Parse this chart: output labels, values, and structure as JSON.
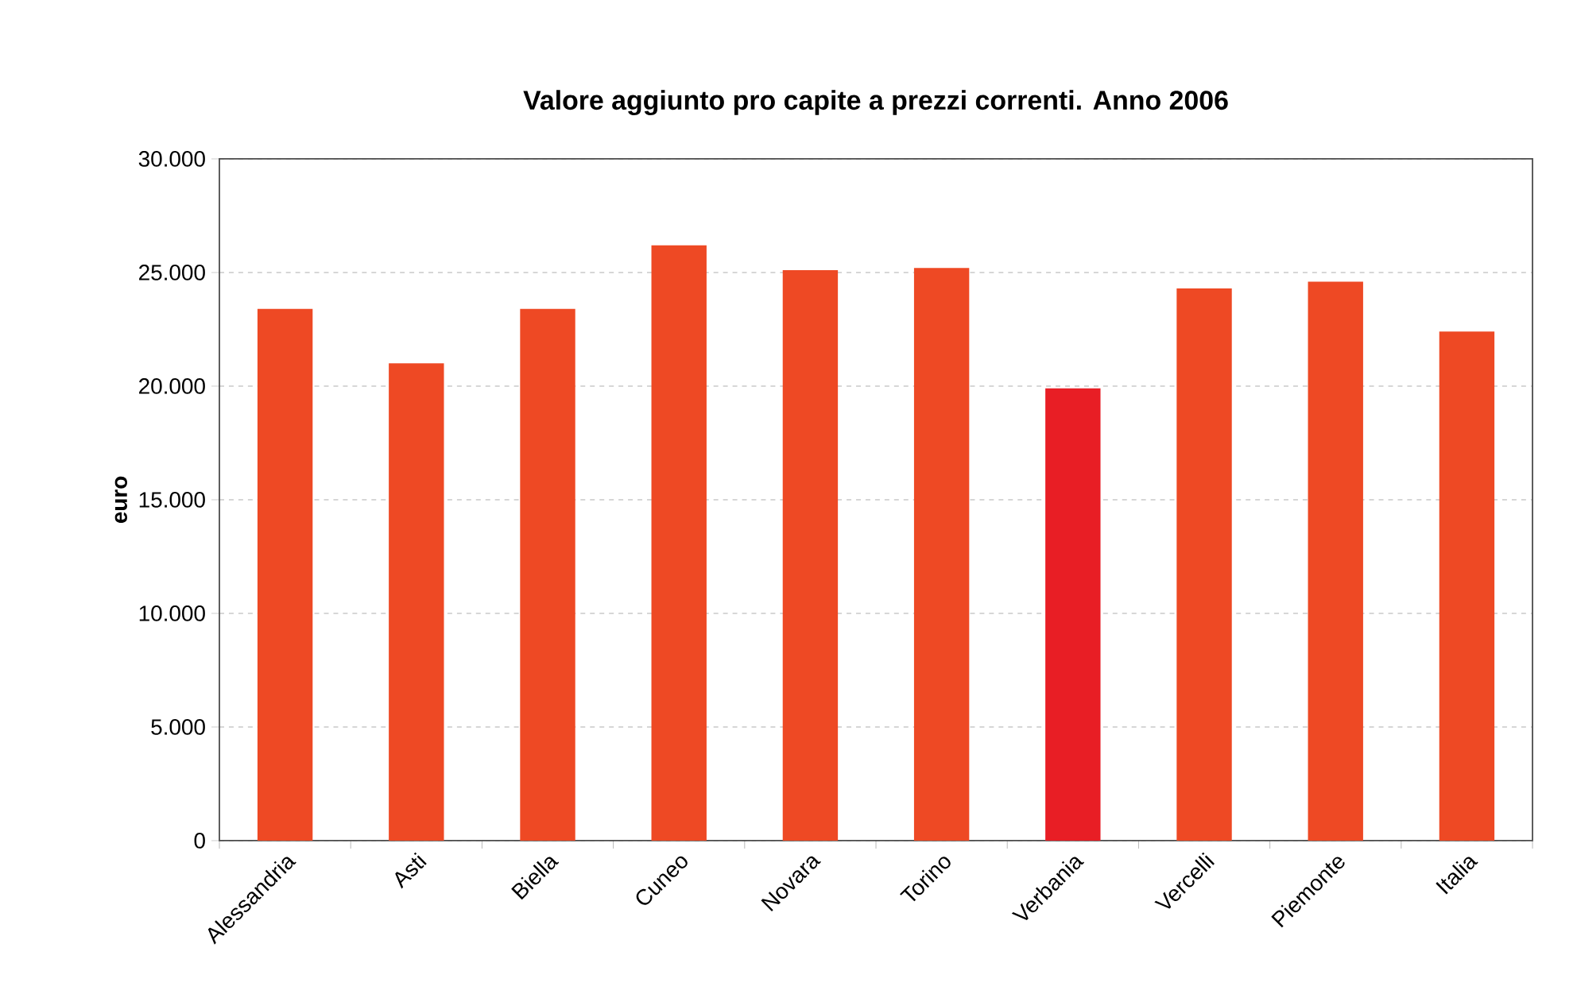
{
  "chart_data": {
    "type": "bar",
    "title": "Valore aggiunto pro capite a prezzi correnti. Anno 2006",
    "ylabel": "euro",
    "categories": [
      "Alessandria",
      "Asti",
      "Biella",
      "Cuneo",
      "Novara",
      "Torino",
      "Verbania",
      "Vercelli",
      "Piemonte",
      "Italia"
    ],
    "values": [
      23400,
      21000,
      23400,
      26200,
      25100,
      25200,
      19900,
      24300,
      24600,
      22400
    ],
    "colors": [
      "#ee4924",
      "#ee4924",
      "#ee4924",
      "#ee4924",
      "#ee4924",
      "#ee4924",
      "#e81e25",
      "#ee4924",
      "#ee4924",
      "#ee4924"
    ],
    "ylim": [
      0,
      30000
    ],
    "yticks": [
      {
        "value": 0,
        "label": "0"
      },
      {
        "value": 5000,
        "label": "5.000"
      },
      {
        "value": 10000,
        "label": "10.000"
      },
      {
        "value": 15000,
        "label": "15.000"
      },
      {
        "value": 20000,
        "label": "20.000"
      },
      {
        "value": 25000,
        "label": "25.000"
      },
      {
        "value": 30000,
        "label": "30.000"
      }
    ],
    "grid": "y"
  }
}
